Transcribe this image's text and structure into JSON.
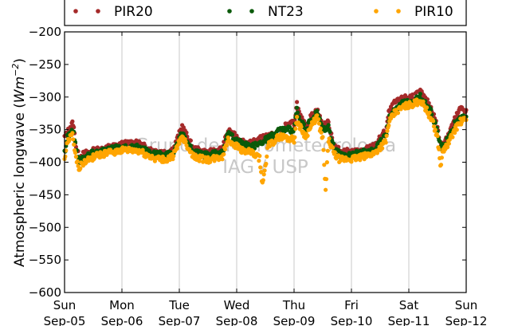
{
  "chart_data": {
    "type": "scatter",
    "ylabel_prefix": "Atmospheric longwave (",
    "ylabel_unit_base": "Wm",
    "ylabel_unit_exp": "−2",
    "ylabel_suffix": ")",
    "ylim": [
      -600,
      -200
    ],
    "yticks": [
      -200,
      -250,
      -300,
      -350,
      -400,
      -450,
      -500,
      -550,
      -600
    ],
    "ytick_labels": [
      "−200",
      "−250",
      "−300",
      "−350",
      "−400",
      "−450",
      "−500",
      "−550",
      "−600"
    ],
    "xticks": [
      {
        "day": "Sun",
        "date": "Sep-05"
      },
      {
        "day": "Mon",
        "date": "Sep-06"
      },
      {
        "day": "Tue",
        "date": "Sep-07"
      },
      {
        "day": "Wed",
        "date": "Sep-08"
      },
      {
        "day": "Thu",
        "date": "Sep-09"
      },
      {
        "day": "Fri",
        "date": "Sep-10"
      },
      {
        "day": "Sat",
        "date": "Sep-11"
      },
      {
        "day": "Sun",
        "date": "Sep-12"
      }
    ],
    "grid": "vertical",
    "legend_placement": "top",
    "watermark": [
      "Grupo de Micrometeorologia",
      "IAG / USP"
    ],
    "series": [
      {
        "name": "PIR20",
        "color": "#a52a2a",
        "points": [
          [
            0,
            -362
          ],
          [
            0.05,
            -355
          ],
          [
            0.1,
            -345
          ],
          [
            0.15,
            -340
          ],
          [
            0.2,
            -375
          ],
          [
            0.25,
            -392
          ],
          [
            0.35,
            -387
          ],
          [
            0.5,
            -383
          ],
          [
            0.75,
            -378
          ],
          [
            1,
            -373
          ],
          [
            1.15,
            -370
          ],
          [
            1.3,
            -372
          ],
          [
            1.5,
            -381
          ],
          [
            1.75,
            -385
          ],
          [
            1.9,
            -380
          ],
          [
            2.05,
            -345
          ],
          [
            2.1,
            -355
          ],
          [
            2.25,
            -380
          ],
          [
            2.5,
            -386
          ],
          [
            2.75,
            -380
          ],
          [
            2.85,
            -352
          ],
          [
            3.0,
            -362
          ],
          [
            3.1,
            -368
          ],
          [
            3.25,
            -372
          ],
          [
            3.4,
            -365
          ],
          [
            3.55,
            -358
          ],
          [
            3.75,
            -362
          ],
          [
            3.85,
            -345
          ],
          [
            4.0,
            -340
          ],
          [
            4.05,
            -310
          ],
          [
            4.1,
            -330
          ],
          [
            4.2,
            -345
          ],
          [
            4.3,
            -330
          ],
          [
            4.4,
            -320
          ],
          [
            4.5,
            -345
          ],
          [
            4.6,
            -340
          ],
          [
            4.7,
            -375
          ],
          [
            4.8,
            -383
          ],
          [
            5.0,
            -385
          ],
          [
            5.2,
            -383
          ],
          [
            5.4,
            -375
          ],
          [
            5.6,
            -352
          ],
          [
            5.65,
            -325
          ],
          [
            5.75,
            -310
          ],
          [
            5.9,
            -303
          ],
          [
            6.0,
            -300
          ],
          [
            6.1,
            -298
          ],
          [
            6.2,
            -293
          ],
          [
            6.3,
            -305
          ],
          [
            6.4,
            -318
          ],
          [
            6.5,
            -348
          ],
          [
            6.55,
            -372
          ],
          [
            6.6,
            -370
          ],
          [
            6.7,
            -355
          ],
          [
            6.8,
            -335
          ],
          [
            6.9,
            -318
          ],
          [
            7.0,
            -320
          ]
        ]
      },
      {
        "name": "NT23",
        "color": "#0a5a0a",
        "points": [
          [
            0,
            -385
          ],
          [
            0.05,
            -360
          ],
          [
            0.1,
            -355
          ],
          [
            0.15,
            -350
          ],
          [
            0.2,
            -380
          ],
          [
            0.25,
            -398
          ],
          [
            0.35,
            -392
          ],
          [
            0.5,
            -385
          ],
          [
            0.75,
            -381
          ],
          [
            1,
            -378
          ],
          [
            1.15,
            -378
          ],
          [
            1.3,
            -378
          ],
          [
            1.5,
            -386
          ],
          [
            1.75,
            -390
          ],
          [
            1.9,
            -385
          ],
          [
            2.05,
            -352
          ],
          [
            2.1,
            -360
          ],
          [
            2.25,
            -385
          ],
          [
            2.5,
            -390
          ],
          [
            2.75,
            -385
          ],
          [
            2.85,
            -357
          ],
          [
            3.0,
            -367
          ],
          [
            3.1,
            -372
          ],
          [
            3.25,
            -378
          ],
          [
            3.4,
            -370
          ],
          [
            3.55,
            -363
          ],
          [
            3.75,
            -352
          ],
          [
            3.85,
            -350
          ],
          [
            4.0,
            -350
          ],
          [
            4.05,
            -320
          ],
          [
            4.1,
            -335
          ],
          [
            4.2,
            -350
          ],
          [
            4.3,
            -335
          ],
          [
            4.4,
            -325
          ],
          [
            4.5,
            -350
          ],
          [
            4.6,
            -347
          ],
          [
            4.7,
            -380
          ],
          [
            4.8,
            -388
          ],
          [
            5.0,
            -388
          ],
          [
            5.2,
            -385
          ],
          [
            5.4,
            -380
          ],
          [
            5.6,
            -360
          ],
          [
            5.65,
            -332
          ],
          [
            5.75,
            -318
          ],
          [
            5.9,
            -310
          ],
          [
            6.0,
            -306
          ],
          [
            6.1,
            -305
          ],
          [
            6.2,
            -300
          ],
          [
            6.3,
            -312
          ],
          [
            6.4,
            -325
          ],
          [
            6.5,
            -355
          ],
          [
            6.55,
            -378
          ],
          [
            6.6,
            -375
          ],
          [
            6.7,
            -362
          ],
          [
            6.8,
            -342
          ],
          [
            6.9,
            -330
          ],
          [
            7.0,
            -330
          ]
        ]
      },
      {
        "name": "PIR10",
        "color": "#ffa500",
        "points": [
          [
            0,
            -398
          ],
          [
            0.05,
            -368
          ],
          [
            0.1,
            -360
          ],
          [
            0.15,
            -360
          ],
          [
            0.2,
            -395
          ],
          [
            0.25,
            -408
          ],
          [
            0.35,
            -400
          ],
          [
            0.5,
            -392
          ],
          [
            0.75,
            -386
          ],
          [
            1,
            -382
          ],
          [
            1.15,
            -382
          ],
          [
            1.3,
            -383
          ],
          [
            1.5,
            -392
          ],
          [
            1.75,
            -397
          ],
          [
            1.9,
            -390
          ],
          [
            2.05,
            -360
          ],
          [
            2.1,
            -368
          ],
          [
            2.25,
            -392
          ],
          [
            2.5,
            -397
          ],
          [
            2.75,
            -392
          ],
          [
            2.85,
            -365
          ],
          [
            3.0,
            -375
          ],
          [
            3.1,
            -382
          ],
          [
            3.25,
            -385
          ],
          [
            3.4,
            -395
          ],
          [
            3.45,
            -435
          ],
          [
            3.55,
            -375
          ],
          [
            3.75,
            -360
          ],
          [
            3.85,
            -362
          ],
          [
            4.0,
            -365
          ],
          [
            4.05,
            -335
          ],
          [
            4.1,
            -345
          ],
          [
            4.2,
            -360
          ],
          [
            4.3,
            -345
          ],
          [
            4.4,
            -330
          ],
          [
            4.5,
            -365
          ],
          [
            4.55,
            -445
          ],
          [
            4.6,
            -365
          ],
          [
            4.7,
            -388
          ],
          [
            4.8,
            -396
          ],
          [
            5.0,
            -395
          ],
          [
            5.2,
            -392
          ],
          [
            5.4,
            -386
          ],
          [
            5.6,
            -368
          ],
          [
            5.65,
            -340
          ],
          [
            5.75,
            -325
          ],
          [
            5.9,
            -315
          ],
          [
            6.0,
            -312
          ],
          [
            6.1,
            -310
          ],
          [
            6.2,
            -305
          ],
          [
            6.3,
            -318
          ],
          [
            6.4,
            -335
          ],
          [
            6.5,
            -362
          ],
          [
            6.55,
            -405
          ],
          [
            6.6,
            -382
          ],
          [
            6.7,
            -370
          ],
          [
            6.8,
            -350
          ],
          [
            6.9,
            -338
          ],
          [
            7.0,
            -335
          ]
        ]
      }
    ]
  }
}
